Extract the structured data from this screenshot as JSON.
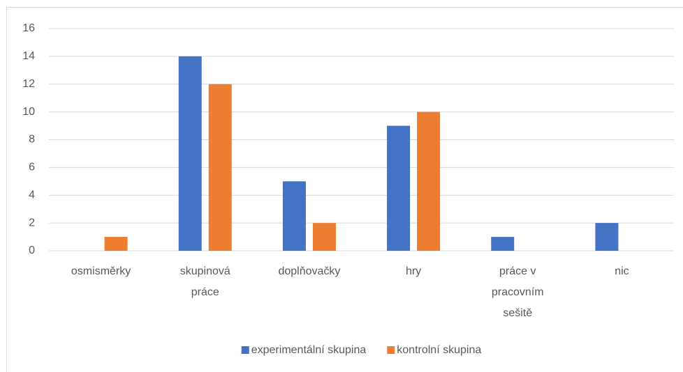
{
  "chart_data": {
    "type": "bar",
    "categories": [
      "osmisměrky",
      "skupinová práce",
      "doplňovačky",
      "hry",
      "práce v pracovním sešitě",
      "nic"
    ],
    "series": [
      {
        "name": "experimentální skupina",
        "color": "#4472c4",
        "values": [
          0,
          14,
          5,
          9,
          1,
          2
        ]
      },
      {
        "name": "kontrolní skupina",
        "color": "#ed7d31",
        "values": [
          1,
          12,
          2,
          10,
          0,
          0
        ]
      }
    ],
    "ylim": [
      0,
      16
    ],
    "yticks": [
      0,
      2,
      4,
      6,
      8,
      10,
      12,
      14,
      16
    ],
    "grid": true,
    "legend": "bottom"
  }
}
